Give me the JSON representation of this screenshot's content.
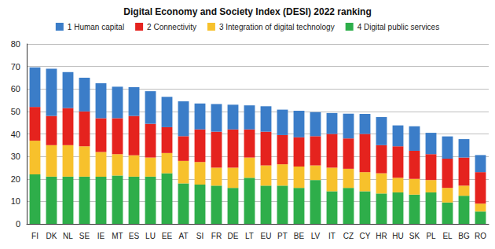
{
  "chart_data": {
    "type": "bar",
    "title": "Digital Economy and Society Index (DESI) 2022 ranking",
    "categories": [
      "FI",
      "DK",
      "NL",
      "SE",
      "IE",
      "MT",
      "ES",
      "LU",
      "EE",
      "AT",
      "SI",
      "FR",
      "DE",
      "LT",
      "EU",
      "PT",
      "BE",
      "LV",
      "IT",
      "CZ",
      "CY",
      "HR",
      "HU",
      "SK",
      "PL",
      "EL",
      "BG",
      "RO"
    ],
    "series": [
      {
        "name": "1 Human capital",
        "color": "#3b7dc8",
        "values": [
          17.6,
          21,
          16,
          15,
          15.5,
          14,
          12.8,
          14.5,
          13.5,
          15.5,
          11.5,
          12.3,
          11,
          10.7,
          11.3,
          11.3,
          11.8,
          10.7,
          9.3,
          11,
          8.9,
          12.5,
          9.3,
          10.9,
          9.5,
          9.9,
          8.2,
          7.6
        ]
      },
      {
        "name": "2 Connectivity",
        "color": "#e5231e",
        "values": [
          15,
          13,
          16.5,
          15.5,
          15,
          16,
          17.5,
          15,
          11.5,
          11,
          14.5,
          16,
          17,
          12.5,
          15,
          13,
          13,
          13,
          15,
          13.5,
          17,
          12.5,
          14,
          12.5,
          11.5,
          13,
          12.5,
          14
        ]
      },
      {
        "name": "3 Integration of digital technology",
        "color": "#f7c12c",
        "values": [
          15,
          14,
          14,
          13.5,
          11,
          9.5,
          9.5,
          8.5,
          9,
          10,
          10,
          8,
          9,
          9,
          9,
          9.5,
          9.5,
          6.5,
          10.5,
          8.5,
          8.5,
          9,
          6.5,
          7,
          5.5,
          6.5,
          4.5,
          3.5
        ]
      },
      {
        "name": "4 Digital public services",
        "color": "#2eae4a",
        "values": [
          22,
          21,
          21,
          21,
          21,
          21.5,
          21,
          21,
          22.5,
          18,
          17.5,
          17,
          16,
          20.5,
          17,
          17,
          16,
          19.5,
          14.5,
          16,
          14.5,
          13.5,
          14,
          13,
          14,
          9.5,
          12.5,
          5.5
        ]
      }
    ],
    "ylim": [
      0,
      80
    ],
    "yticks": [
      0,
      10,
      20,
      30,
      40,
      50,
      60,
      70,
      80
    ],
    "stacked": true,
    "grid": true,
    "legend": "top"
  }
}
